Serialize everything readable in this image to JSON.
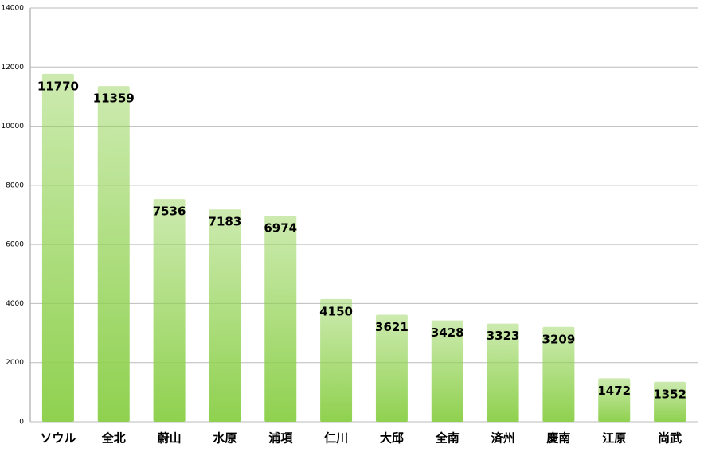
{
  "chart_data": {
    "type": "bar",
    "categories": [
      "ソウル",
      "全北",
      "蔚山",
      "水原",
      "浦項",
      "仁川",
      "大邱",
      "全南",
      "済州",
      "慶南",
      "江原",
      "尚武"
    ],
    "values": [
      11770,
      11359,
      7536,
      7183,
      6974,
      4150,
      3621,
      3428,
      3323,
      3209,
      1472,
      1352
    ],
    "color": "#8fd14f",
    "ylim": [
      0,
      14000
    ],
    "yticks": [
      0,
      2000,
      4000,
      6000,
      8000,
      10000,
      12000,
      14000
    ],
    "grid": true
  }
}
